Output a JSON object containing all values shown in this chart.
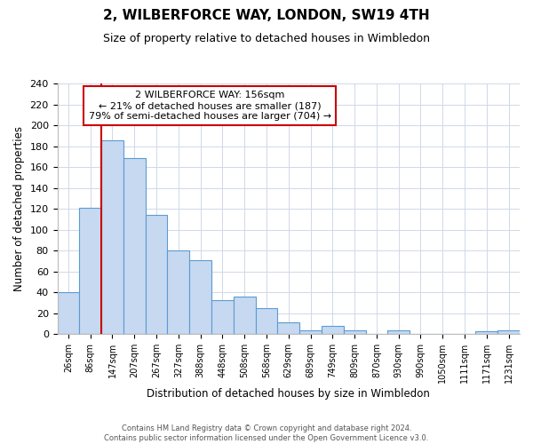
{
  "title": "2, WILBERFORCE WAY, LONDON, SW19 4TH",
  "subtitle": "Size of property relative to detached houses in Wimbledon",
  "xlabel": "Distribution of detached houses by size in Wimbledon",
  "ylabel": "Number of detached properties",
  "bin_labels": [
    "26sqm",
    "86sqm",
    "147sqm",
    "207sqm",
    "267sqm",
    "327sqm",
    "388sqm",
    "448sqm",
    "508sqm",
    "568sqm",
    "629sqm",
    "689sqm",
    "749sqm",
    "809sqm",
    "870sqm",
    "930sqm",
    "990sqm",
    "1050sqm",
    "1111sqm",
    "1171sqm",
    "1231sqm"
  ],
  "bar_heights": [
    40,
    121,
    186,
    169,
    114,
    80,
    71,
    33,
    36,
    25,
    11,
    4,
    8,
    4,
    0,
    4,
    0,
    0,
    0,
    3,
    4
  ],
  "bar_color": "#c6d9f0",
  "bar_edgecolor": "#5b9bd5",
  "red_line_index": 2,
  "ylim": [
    0,
    240
  ],
  "yticks": [
    0,
    20,
    40,
    60,
    80,
    100,
    120,
    140,
    160,
    180,
    200,
    220,
    240
  ],
  "annotation_line1": "2 WILBERFORCE WAY: 156sqm",
  "annotation_line2": "← 21% of detached houses are smaller (187)",
  "annotation_line3": "79% of semi-detached houses are larger (704) →",
  "annotation_box_color": "#ffffff",
  "annotation_box_edgecolor": "#cc0000",
  "footer_line1": "Contains HM Land Registry data © Crown copyright and database right 2024.",
  "footer_line2": "Contains public sector information licensed under the Open Government Licence v3.0.",
  "background_color": "#ffffff",
  "grid_color": "#d0d8e8",
  "fig_width": 6.0,
  "fig_height": 5.0,
  "fig_dpi": 100
}
